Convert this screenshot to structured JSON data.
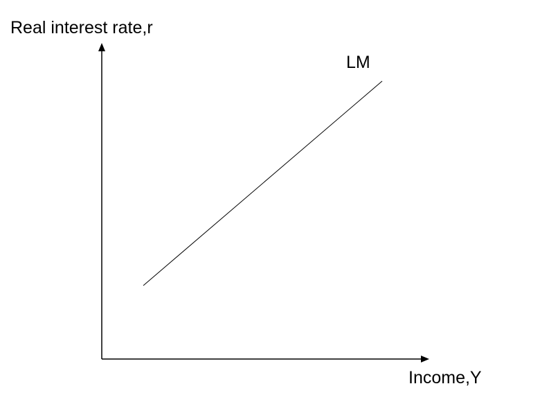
{
  "diagram": {
    "y_axis_label": "Real interest rate,r",
    "x_axis_label": "Income,Y",
    "curve_label": "LM",
    "line_color": "#000000"
  }
}
